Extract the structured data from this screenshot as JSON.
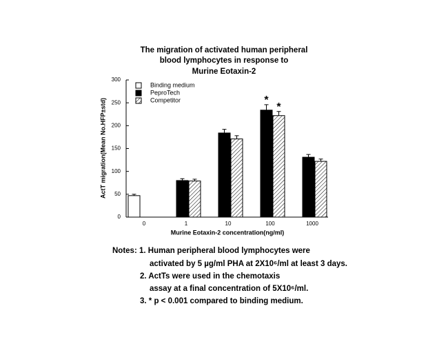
{
  "chart_data": {
    "type": "bar",
    "title": [
      "The migration of activated human peripheral",
      "blood lymphocytes in response to",
      "Murine Eotaxin-2"
    ],
    "y_label": "ActT migration(Mean No.HFP±std)",
    "x_label": "Murine Eotaxin-2  concentration(ng/ml)",
    "categories": [
      "0",
      "1",
      "10",
      "100",
      "1000"
    ],
    "series": [
      {
        "name": "Binding medium",
        "color": "#ffffff",
        "values": [
          47,
          null,
          null,
          null,
          null
        ],
        "errors": [
          3,
          null,
          null,
          null,
          null
        ]
      },
      {
        "name": "PeproTech",
        "color": "#000000",
        "values": [
          null,
          80,
          184,
          234,
          131
        ],
        "errors": [
          null,
          4,
          8,
          12,
          6
        ]
      },
      {
        "name": "Competitor",
        "color": "#ffffff",
        "hatch": true,
        "values": [
          null,
          79,
          171,
          222,
          122
        ],
        "errors": [
          null,
          4,
          7,
          9,
          5
        ]
      }
    ],
    "annotations": [
      {
        "text": "*",
        "series": "PeproTech",
        "category": "100"
      },
      {
        "text": "*",
        "series": "Competitor",
        "category": "100"
      }
    ],
    "ylim": [
      0,
      300
    ],
    "yticks": [
      0,
      50,
      100,
      150,
      200,
      250,
      300
    ],
    "legend": "top-left",
    "notes": [
      "Notes: 1. Human peripheral blood lymphocytes were",
      "activated by 5 µg/ml PHA at 2X10⁶/ml at least 3 days.",
      "2. ActTs were used in the chemotaxis",
      "assay at a final concentration of 5X10⁶/ml.",
      "3. * p < 0.001 compared to binding medium."
    ]
  }
}
